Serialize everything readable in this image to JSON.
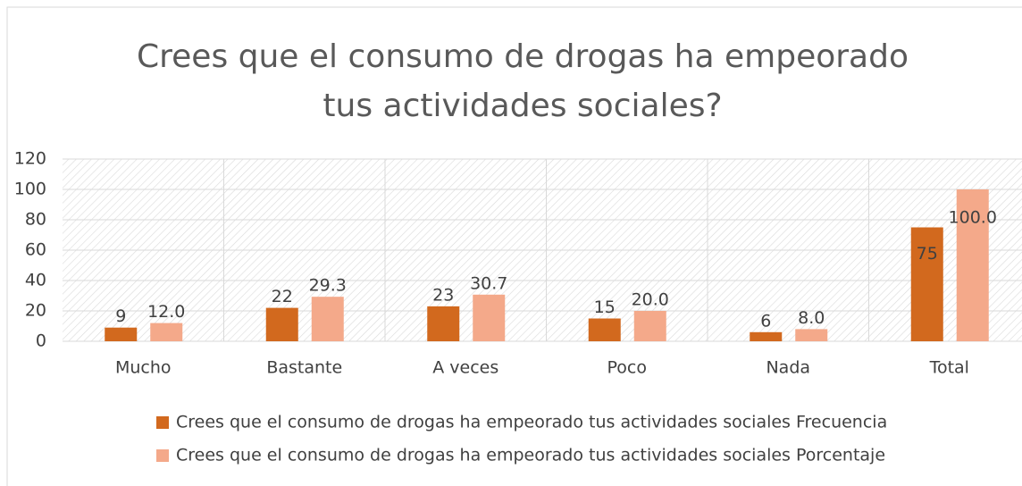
{
  "chart_data": {
    "type": "bar",
    "title": "Crees que el consumo de drogas ha empeorado tus actividades sociales?",
    "categories": [
      "Mucho",
      "Bastante",
      "A veces",
      "Poco",
      "Nada",
      "Total"
    ],
    "series": [
      {
        "name": "Crees que el consumo de drogas ha empeorado tus actividades sociales Frecuencia",
        "color": "#d2691e",
        "values": [
          9,
          22,
          23,
          15,
          6,
          75
        ]
      },
      {
        "name": "Crees que el consumo de drogas ha empeorado tus actividades sociales Porcentaje",
        "color": "#f4a98a",
        "values": [
          12,
          29.3,
          30.7,
          20,
          8,
          100
        ],
        "value_labels": [
          "12.0",
          "29.3",
          "30.7",
          "20.0",
          "8.0",
          "100.0"
        ]
      }
    ],
    "ylim": [
      0,
      120
    ],
    "yticks": [
      0,
      20,
      40,
      60,
      80,
      100,
      120
    ],
    "grid": true,
    "legend": "bottom"
  }
}
